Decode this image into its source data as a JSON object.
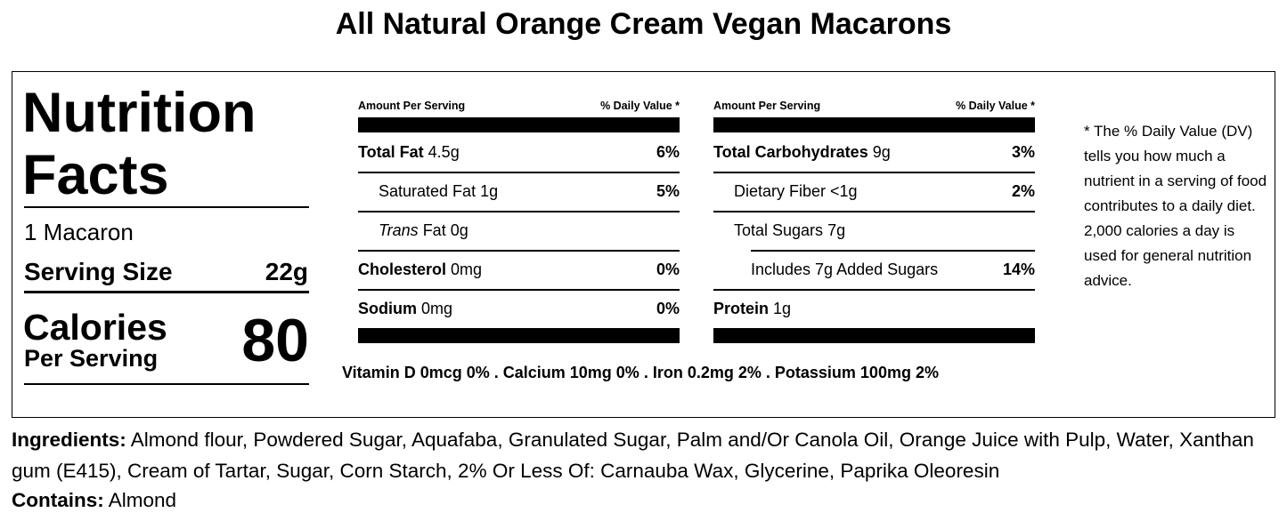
{
  "title": "All Natural Orange Cream Vegan Macarons",
  "facts": {
    "heading_line1": "Nutrition",
    "heading_line2": "Facts",
    "servings": "1 Macaron",
    "serving_size_label": "Serving Size",
    "serving_size": "22g",
    "calories_label": "Calories",
    "calories_sub": "Per Serving",
    "calories": "80"
  },
  "tables": [
    {
      "header": {
        "amount": "Amount Per Serving",
        "dv": "% Daily Value *"
      },
      "rows": [
        {
          "name": "Total Fat",
          "amount": "4.5g",
          "dv": "6%",
          "bold": true,
          "indent": 0
        },
        {
          "name": "Saturated Fat",
          "amount": "1g",
          "dv": "5%",
          "bold": false,
          "indent": 1
        },
        {
          "prefix": "Trans",
          "name": "Fat",
          "amount": "0g",
          "bold": false,
          "indent": 1
        },
        {
          "name": "Cholesterol",
          "amount": "0mg",
          "dv": "0%",
          "bold": true,
          "indent": 0
        },
        {
          "name": "Sodium",
          "amount": "0mg",
          "dv": "0%",
          "bold": true,
          "indent": 0
        }
      ]
    },
    {
      "header": {
        "amount": "Amount Per Serving",
        "dv": "% Daily Value *"
      },
      "rows": [
        {
          "name": "Total Carbohydrates",
          "amount": "9g",
          "dv": "3%",
          "bold": true,
          "indent": 0
        },
        {
          "name": "Dietary Fiber",
          "amount": "<1g",
          "dv": "2%",
          "bold": false,
          "indent": 1
        },
        {
          "name": "Total Sugars",
          "amount": "7g",
          "bold": false,
          "indent": 1
        },
        {
          "name": "Includes 7g Added Sugars",
          "dv": "14%",
          "bold": false,
          "indent": 2
        },
        {
          "name": "Protein",
          "amount": "1g",
          "bold": true,
          "indent": 0
        }
      ]
    }
  ],
  "vitamins": {
    "items": [
      "Vitamin D 0mcg 0%",
      "Calcium 10mg 0%",
      "Iron 0.2mg 2%",
      "Potassium 100mg 2%"
    ],
    "separator": "."
  },
  "footnote": "* The % Daily Value (DV) tells you how much a nutrient in a serving of food contributes to a daily diet. 2,000 calories a day is used for general nutrition advice.",
  "ingredients": {
    "label": "Ingredients:",
    "text": "Almond flour, Powdered Sugar, Aquafaba, Granulated Sugar, Palm and/Or Canola Oil, Orange Juice with Pulp, Water, Xanthan gum (E415), Cream of Tartar, Sugar, Corn Starch, 2% Or Less Of: Carnauba Wax, Glycerine, Paprika Oleoresin"
  },
  "contains": {
    "label": "Contains:",
    "text": "Almond"
  }
}
